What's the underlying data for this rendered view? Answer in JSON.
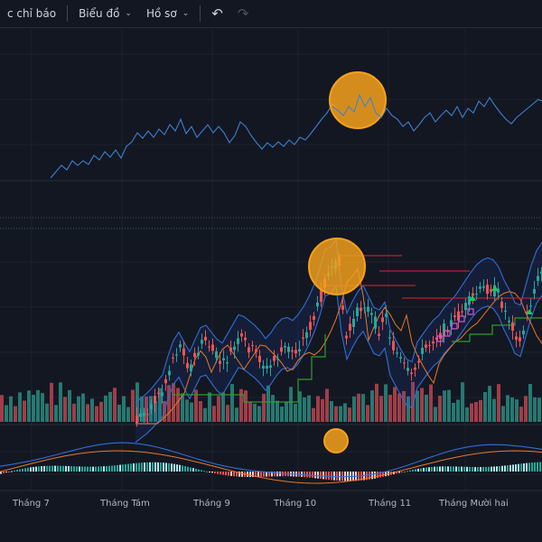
{
  "toolbar": {
    "indicators_label": "c chỉ báo",
    "chart_label": "Biểu đồ",
    "profile_label": "Hồ sơ"
  },
  "x_axis": {
    "labels": [
      "Tháng 7",
      "Tháng Tám",
      "Tháng 9",
      "Tháng 10",
      "Tháng 11",
      "Tháng Mười hai"
    ]
  },
  "colors": {
    "background": "#131722",
    "up": "#26a69a",
    "down": "#ef5350",
    "line": "#2962ff",
    "highlight": "#f7a21b"
  }
}
